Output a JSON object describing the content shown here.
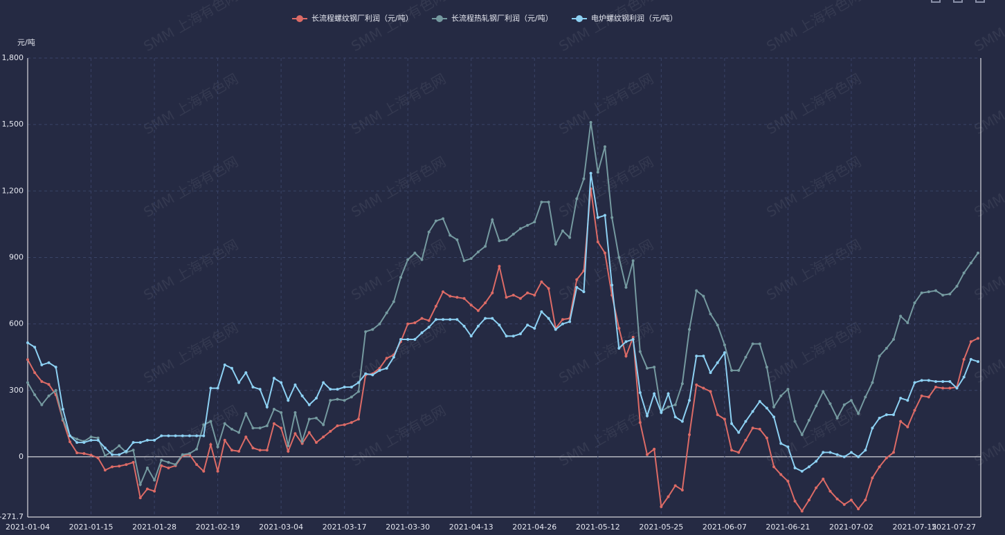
{
  "chart_data": {
    "type": "line",
    "y_axis_label": "元/吨",
    "watermark": "SMM 上海有色网",
    "categories": [
      "2021-01-04",
      null,
      null,
      null,
      null,
      null,
      null,
      null,
      null,
      "2021-01-15",
      null,
      null,
      null,
      null,
      null,
      null,
      null,
      null,
      "2021-01-28",
      null,
      null,
      null,
      null,
      null,
      null,
      null,
      null,
      "2021-02-19",
      null,
      null,
      null,
      null,
      null,
      null,
      null,
      null,
      "2021-03-04",
      null,
      null,
      null,
      null,
      null,
      null,
      null,
      null,
      "2021-03-17",
      null,
      null,
      null,
      null,
      null,
      null,
      null,
      null,
      "2021-03-30",
      null,
      null,
      null,
      null,
      null,
      null,
      null,
      null,
      "2021-04-13",
      null,
      null,
      null,
      null,
      null,
      null,
      null,
      null,
      "2021-04-26",
      null,
      null,
      null,
      null,
      null,
      null,
      null,
      null,
      "2021-05-12",
      null,
      null,
      null,
      null,
      null,
      null,
      null,
      null,
      "2021-05-25",
      null,
      null,
      null,
      null,
      null,
      null,
      null,
      null,
      "2021-06-07",
      null,
      null,
      null,
      null,
      null,
      null,
      null,
      null,
      "2021-06-21",
      null,
      null,
      null,
      null,
      null,
      null,
      null,
      null,
      "2021-07-02",
      null,
      null,
      null,
      null,
      null,
      null,
      null,
      null,
      "2021-07-15",
      null,
      null,
      null,
      null,
      null,
      null,
      null,
      null,
      "2021-07-27"
    ],
    "series": [
      {
        "name": "长流程螺纹钢厂利润（元/吨）",
        "color": "#dd6b66",
        "values": [
          439,
          380,
          340,
          327,
          280,
          165,
          68,
          18,
          15,
          8,
          -5,
          -60,
          -45,
          -42,
          -35,
          -25,
          -185,
          -145,
          -155,
          -40,
          -50,
          -40,
          5,
          10,
          -35,
          -65,
          55,
          -65,
          75,
          30,
          25,
          90,
          40,
          30,
          30,
          150,
          130,
          25,
          105,
          60,
          110,
          65,
          90,
          115,
          140,
          145,
          155,
          170,
          370,
          375,
          400,
          445,
          460,
          520,
          600,
          605,
          625,
          615,
          680,
          745,
          725,
          720,
          715,
          685,
          660,
          695,
          740,
          860,
          720,
          730,
          715,
          740,
          730,
          790,
          760,
          580,
          620,
          625,
          800,
          840,
          1210,
          970,
          920,
          730,
          580,
          455,
          540,
          155,
          10,
          35,
          -225,
          -180,
          -130,
          -150,
          100,
          325,
          310,
          295,
          190,
          170,
          30,
          20,
          75,
          130,
          125,
          85,
          -45,
          -80,
          -110,
          -200,
          -245,
          -195,
          -140,
          -100,
          -155,
          -190,
          -215,
          -195,
          -235,
          -195,
          -95,
          -45,
          -5,
          20,
          160,
          135,
          210,
          275,
          270,
          315,
          310,
          310,
          315,
          440,
          520,
          535
        ]
      },
      {
        "name": "长流程热轧钢厂利润（元/吨）",
        "color": "#759aa0",
        "values": [
          335,
          280,
          235,
          275,
          300,
          170,
          95,
          80,
          70,
          90,
          85,
          5,
          25,
          50,
          20,
          30,
          -125,
          -50,
          -105,
          -15,
          -25,
          -35,
          10,
          15,
          35,
          145,
          160,
          45,
          150,
          125,
          110,
          195,
          130,
          130,
          140,
          215,
          200,
          50,
          200,
          70,
          170,
          175,
          145,
          255,
          260,
          255,
          270,
          295,
          565,
          575,
          600,
          650,
          700,
          810,
          890,
          920,
          890,
          1015,
          1065,
          1075,
          1000,
          980,
          885,
          895,
          925,
          950,
          1070,
          975,
          980,
          1005,
          1030,
          1045,
          1060,
          1150,
          1150,
          960,
          1020,
          990,
          1165,
          1255,
          1510,
          1285,
          1400,
          1080,
          900,
          765,
          885,
          475,
          400,
          405,
          205,
          225,
          235,
          330,
          575,
          750,
          725,
          645,
          595,
          505,
          390,
          390,
          450,
          510,
          510,
          405,
          225,
          275,
          305,
          160,
          100,
          165,
          230,
          295,
          240,
          175,
          235,
          255,
          195,
          270,
          335,
          455,
          490,
          530,
          635,
          605,
          695,
          740,
          745,
          750,
          730,
          735,
          770,
          830,
          875,
          920
        ]
      },
      {
        "name": "电炉螺纹钢利润（元/吨）",
        "color": "#8dd1f3",
        "values": [
          515,
          495,
          415,
          425,
          405,
          215,
          95,
          65,
          65,
          75,
          75,
          40,
          10,
          10,
          25,
          65,
          65,
          75,
          75,
          95,
          95,
          95,
          95,
          95,
          95,
          95,
          310,
          310,
          415,
          400,
          335,
          380,
          315,
          305,
          225,
          355,
          335,
          255,
          325,
          275,
          235,
          265,
          335,
          305,
          305,
          315,
          315,
          335,
          375,
          370,
          390,
          400,
          450,
          530,
          530,
          530,
          560,
          585,
          620,
          620,
          620,
          620,
          590,
          545,
          590,
          625,
          625,
          595,
          545,
          545,
          555,
          595,
          580,
          655,
          625,
          575,
          600,
          610,
          765,
          745,
          1280,
          1080,
          1090,
          775,
          490,
          520,
          530,
          290,
          185,
          285,
          200,
          285,
          180,
          160,
          255,
          455,
          455,
          380,
          425,
          470,
          150,
          110,
          160,
          205,
          250,
          220,
          180,
          60,
          45,
          -50,
          -65,
          -45,
          -20,
          20,
          20,
          10,
          0,
          20,
          0,
          30,
          130,
          175,
          190,
          190,
          265,
          255,
          335,
          345,
          345,
          340,
          340,
          340,
          310,
          360,
          440,
          430
        ]
      }
    ],
    "ylim": [
      -271.7,
      1800
    ],
    "yticks": [
      {
        "value": -271.7,
        "label": "-271.7"
      },
      0,
      300,
      600,
      900,
      {
        "value": 1200,
        "label": "1,200"
      },
      {
        "value": 1500,
        "label": "1,500"
      },
      {
        "value": 1800,
        "label": "1,800"
      }
    ],
    "grid": true,
    "legend": "top"
  }
}
